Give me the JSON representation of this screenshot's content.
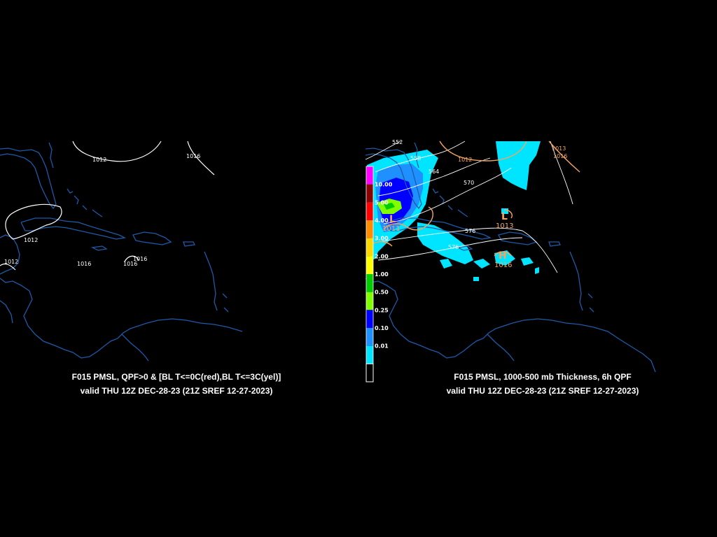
{
  "left_panel": {
    "title": "F015 PMSL, QPF>0 & [BL T<=0C(red),BL T<=3C(yel)]",
    "valid": "valid THU 12Z DEC-28-23 (21Z SREF 12-27-2023)",
    "isobar_labels": [
      "1012",
      "1016",
      "1012",
      "1012",
      "1016",
      "1016",
      "1016"
    ]
  },
  "right_panel": {
    "title": "F015 PMSL, 1000-500 mb Thickness, 6h QPF",
    "valid": "valid THU 12Z DEC-28-23 (21Z SREF 12-27-2023)",
    "thickness_labels": [
      "552",
      "558",
      "564",
      "570",
      "576",
      "576"
    ],
    "isobar_labels": [
      "1012",
      "1016",
      "1013",
      "1011"
    ],
    "pressure_centers": [
      {
        "symbol": "L",
        "value": "1013"
      },
      {
        "symbol": "H",
        "value": "1016"
      },
      {
        "symbol": "L",
        "value": "1011"
      }
    ],
    "qpf_colorbar": {
      "labels": [
        "10.00",
        "5.00",
        "4.00",
        "3.00",
        "2.00",
        "1.00",
        "0.50",
        "0.25",
        "0.10",
        "0.01"
      ],
      "colors": [
        "#ff00ff",
        "#8b0000",
        "#ff0000",
        "#ff8c00",
        "#ffd700",
        "#ffff00",
        "#00cc00",
        "#80ff00",
        "#0000ff",
        "#1e90ff",
        "#00e5ff",
        "#000000"
      ]
    }
  },
  "colors": {
    "background": "#000000",
    "coastline": "#1e5aa8",
    "isobar": "#ffffff",
    "isobar_right": "#f4a460",
    "thickness": "#ffffff"
  }
}
